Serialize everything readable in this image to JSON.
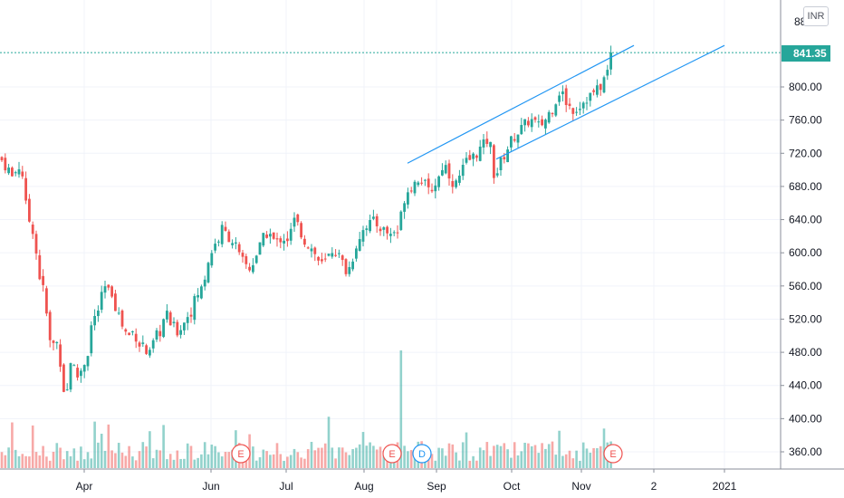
{
  "chart_data": {
    "type": "candlestick",
    "currency": "INR",
    "last_price_label": "841.35",
    "last_price": 841.35,
    "y_axis": {
      "ylim": [
        346,
        890
      ],
      "ticks": [
        360,
        400,
        440,
        480,
        520,
        560,
        600,
        640,
        680,
        720,
        760,
        800
      ],
      "tick_labels": [
        "360.00",
        "400.00",
        "440.00",
        "480.00",
        "520.00",
        "560.00",
        "600.00",
        "640.00",
        "680.00",
        "720.00",
        "760.00",
        "800.00"
      ],
      "top_partial_label": "88"
    },
    "x_axis": {
      "tick_labels": [
        "Apr",
        "Jun",
        "Jul",
        "Aug",
        "Sep",
        "Oct",
        "Nov",
        "2",
        "2021"
      ]
    },
    "grid": true,
    "colors": {
      "up": "#26a69a",
      "down": "#ef5350",
      "trendline": "#2196f3",
      "price_line": "#26a69a"
    },
    "events": [
      {
        "label": "E",
        "date": "Jun",
        "color": "#ef5350"
      },
      {
        "label": "E",
        "date": "Aug",
        "color": "#ef5350"
      },
      {
        "label": "D",
        "date": "Aug",
        "color": "#2196f3"
      },
      {
        "label": "E",
        "date": "Nov",
        "color": "#ef5350"
      }
    ],
    "close_path": [
      [
        0,
        715
      ],
      [
        6,
        705
      ],
      [
        9,
        702
      ],
      [
        14,
        690
      ],
      [
        18,
        700
      ],
      [
        22,
        705
      ],
      [
        26,
        690
      ],
      [
        28,
        660
      ],
      [
        32,
        640
      ],
      [
        36,
        630
      ],
      [
        40,
        600
      ],
      [
        44,
        570
      ],
      [
        47,
        560
      ],
      [
        50,
        540
      ],
      [
        54,
        500
      ],
      [
        57,
        480
      ],
      [
        61,
        500
      ],
      [
        65,
        480
      ],
      [
        68,
        460
      ],
      [
        72,
        420
      ],
      [
        75,
        440
      ],
      [
        78,
        470
      ],
      [
        82,
        460
      ],
      [
        86,
        450
      ],
      [
        90,
        460
      ],
      [
        94,
        470
      ],
      [
        97,
        480
      ],
      [
        100,
        510
      ],
      [
        104,
        520
      ],
      [
        108,
        530
      ],
      [
        112,
        545
      ],
      [
        115,
        560
      ],
      [
        119,
        550
      ],
      [
        122,
        560
      ],
      [
        126,
        540
      ],
      [
        130,
        530
      ],
      [
        134,
        515
      ],
      [
        138,
        505
      ],
      [
        142,
        500
      ],
      [
        146,
        505
      ],
      [
        150,
        500
      ],
      [
        154,
        490
      ],
      [
        158,
        490
      ],
      [
        161,
        480
      ],
      [
        165,
        475
      ],
      [
        169,
        490
      ],
      [
        173,
        500
      ],
      [
        177,
        505
      ],
      [
        181,
        520
      ],
      [
        185,
        525
      ],
      [
        188,
        515
      ],
      [
        192,
        510
      ],
      [
        196,
        505
      ],
      [
        199,
        510
      ],
      [
        203,
        515
      ],
      [
        207,
        525
      ],
      [
        211,
        530
      ],
      [
        214,
        540
      ],
      [
        218,
        550
      ],
      [
        222,
        555
      ],
      [
        226,
        570
      ],
      [
        230,
        590
      ],
      [
        233,
        600
      ],
      [
        237,
        610
      ],
      [
        241,
        615
      ],
      [
        244,
        630
      ],
      [
        248,
        625
      ],
      [
        252,
        620
      ],
      [
        256,
        615
      ],
      [
        260,
        610
      ],
      [
        264,
        595
      ],
      [
        268,
        590
      ],
      [
        272,
        585
      ],
      [
        276,
        580
      ],
      [
        280,
        590
      ],
      [
        284,
        600
      ],
      [
        288,
        610
      ],
      [
        292,
        620
      ],
      [
        296,
        625
      ],
      [
        300,
        620
      ],
      [
        304,
        610
      ],
      [
        308,
        615
      ],
      [
        312,
        620
      ],
      [
        316,
        615
      ],
      [
        320,
        620
      ],
      [
        324,
        640
      ],
      [
        328,
        635
      ],
      [
        332,
        625
      ],
      [
        336,
        615
      ],
      [
        340,
        610
      ],
      [
        344,
        605
      ],
      [
        348,
        598
      ],
      [
        352,
        590
      ],
      [
        356,
        585
      ],
      [
        360,
        590
      ],
      [
        364,
        598
      ],
      [
        368,
        605
      ],
      [
        372,
        600
      ],
      [
        376,
        592
      ],
      [
        380,
        585
      ],
      [
        383,
        575
      ],
      [
        387,
        585
      ],
      [
        391,
        600
      ],
      [
        395,
        615
      ],
      [
        399,
        625
      ],
      [
        403,
        632
      ],
      [
        407,
        636
      ],
      [
        411,
        638
      ],
      [
        415,
        635
      ],
      [
        419,
        632
      ],
      [
        423,
        628
      ],
      [
        427,
        625
      ],
      [
        431,
        622
      ],
      [
        435,
        626
      ],
      [
        439,
        625
      ],
      [
        442,
        640
      ],
      [
        446,
        665
      ],
      [
        450,
        675
      ],
      [
        454,
        680
      ],
      [
        458,
        685
      ],
      [
        462,
        690
      ],
      [
        466,
        688
      ],
      [
        470,
        680
      ],
      [
        474,
        672
      ],
      [
        478,
        680
      ],
      [
        482,
        685
      ],
      [
        486,
        695
      ],
      [
        490,
        710
      ],
      [
        494,
        700
      ],
      [
        498,
        690
      ],
      [
        502,
        680
      ],
      [
        506,
        688
      ],
      [
        510,
        698
      ],
      [
        514,
        708
      ],
      [
        518,
        712
      ],
      [
        522,
        715
      ],
      [
        526,
        720
      ],
      [
        530,
        725
      ],
      [
        534,
        730
      ],
      [
        538,
        735
      ],
      [
        542,
        728
      ],
      [
        546,
        690
      ],
      [
        550,
        700
      ],
      [
        554,
        712
      ],
      [
        558,
        720
      ],
      [
        562,
        730
      ],
      [
        566,
        738
      ],
      [
        570,
        743
      ],
      [
        574,
        748
      ],
      [
        578,
        752
      ],
      [
        582,
        758
      ],
      [
        586,
        760
      ],
      [
        590,
        758
      ],
      [
        594,
        752
      ],
      [
        598,
        755
      ],
      [
        602,
        760
      ],
      [
        606,
        768
      ],
      [
        610,
        775
      ],
      [
        614,
        785
      ],
      [
        618,
        795
      ],
      [
        622,
        790
      ],
      [
        626,
        780
      ],
      [
        630,
        775
      ],
      [
        634,
        772
      ],
      [
        638,
        775
      ],
      [
        642,
        780
      ],
      [
        646,
        785
      ],
      [
        650,
        788
      ],
      [
        654,
        792
      ],
      [
        658,
        795
      ],
      [
        662,
        798
      ],
      [
        666,
        808
      ],
      [
        670,
        815
      ],
      [
        674,
        835
      ],
      [
        678,
        841.35
      ]
    ],
    "trendlines": [
      {
        "name": "upper channel",
        "from": [
          450,
          708
        ],
        "to": [
          700,
          850
        ]
      },
      {
        "name": "lower channel",
        "from": [
          548,
          713
        ],
        "to": [
          800,
          850
        ]
      }
    ],
    "volume_note": "volume histogram along bottom, spike at mid-Aug"
  }
}
